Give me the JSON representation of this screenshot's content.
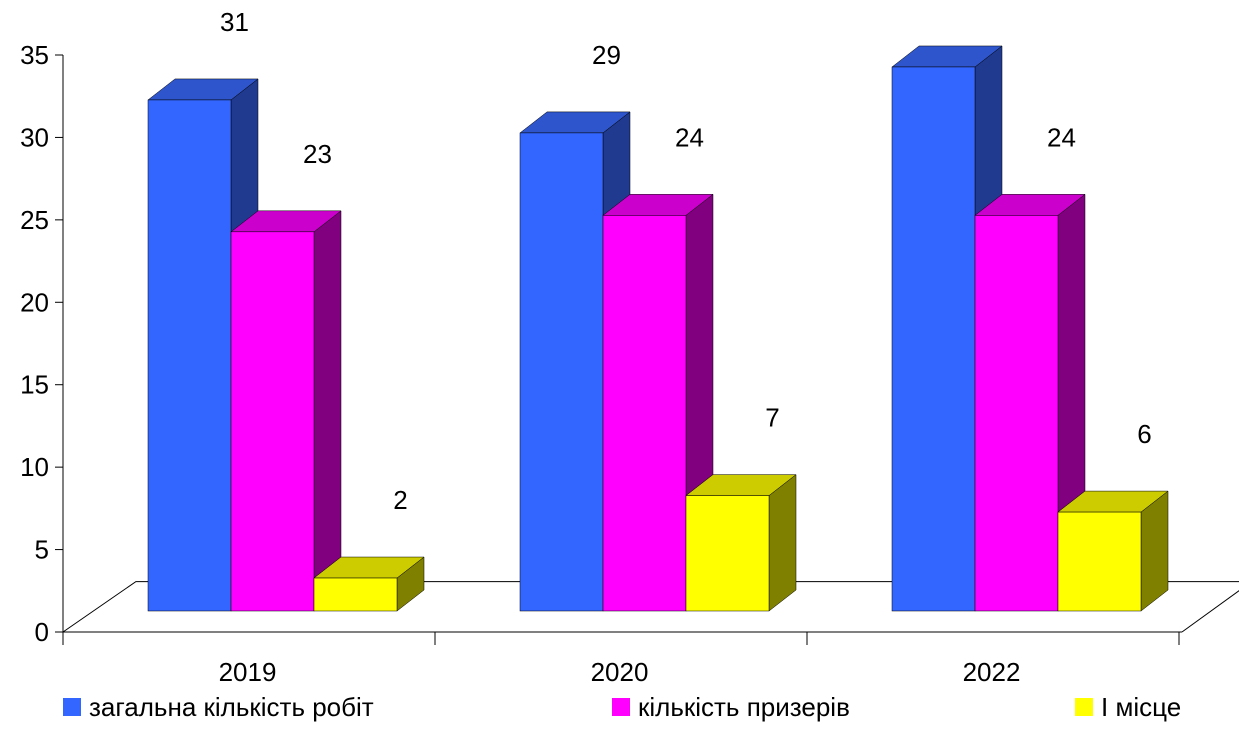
{
  "chart_data": {
    "type": "bar",
    "style": "3d-clustered-column",
    "categories": [
      "2019",
      "2020",
      "2022"
    ],
    "series": [
      {
        "name": "загальна кількість робіт",
        "values": [
          31,
          29,
          33
        ],
        "color": "#3366FF",
        "top_color": "#2E55CC",
        "side_color": "#1F3A8F"
      },
      {
        "name": "кількість призерів",
        "values": [
          23,
          24,
          24
        ],
        "color": "#FF00FF",
        "top_color": "#CC00CC",
        "side_color": "#800080"
      },
      {
        "name": "І місце",
        "values": [
          2,
          7,
          6
        ],
        "color": "#FFFF00",
        "top_color": "#CCCC00",
        "side_color": "#808000"
      }
    ],
    "y_ticks": [
      "0",
      "5",
      "10",
      "15",
      "20",
      "25",
      "30",
      "35"
    ],
    "ylim": [
      0,
      35
    ],
    "grid": false,
    "legend_position": "bottom"
  }
}
